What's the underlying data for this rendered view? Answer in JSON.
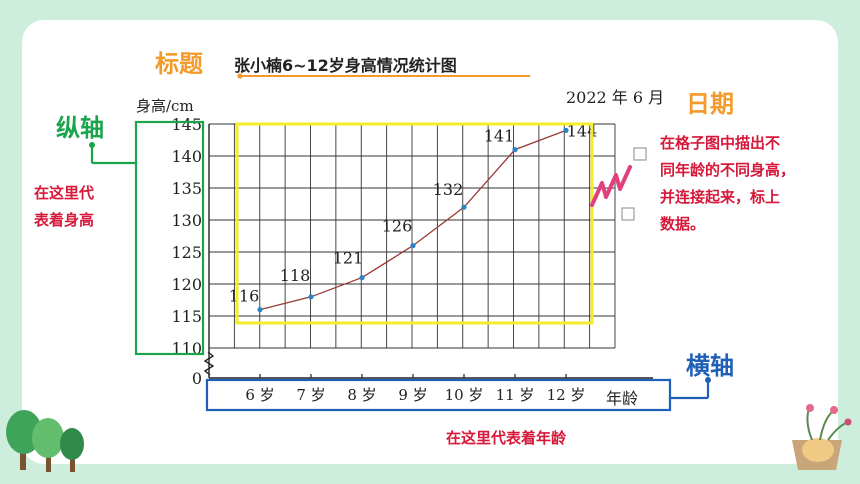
{
  "annotations": {
    "title_tag": "标题",
    "date_tag": "日期",
    "y_axis_tag": "纵轴",
    "x_axis_tag": "横轴",
    "y_axis_note": [
      "在这里代",
      "表着身高"
    ],
    "x_axis_note": "在这里代表着年龄",
    "plot_note": [
      "在格子图中描出不",
      "同年龄的不同身高，",
      "并连接起来，标上",
      "数据。"
    ]
  },
  "colors": {
    "background": "#cdeedd",
    "title_tag": "#f39a2b",
    "axis_tags": "#1aa54c",
    "x_axis_box": "#1f5fb8",
    "plot_box": "#f2ee2a",
    "note_text": "#d6183a",
    "line": "#9a3a36",
    "points": "#2a84c6"
  },
  "chart_data": {
    "type": "line",
    "title": "张小楠6~12岁身高情况统计图",
    "date": "2022 年 6 月",
    "ylabel": "身高/cm",
    "xlabel": "年龄",
    "categories": [
      "6 岁",
      "7 岁",
      "8 岁",
      "9 岁",
      "10 岁",
      "11 岁",
      "12 岁"
    ],
    "values": [
      116,
      118,
      121,
      126,
      132,
      141,
      144
    ],
    "value_labels": [
      "116",
      "118",
      "121",
      "126",
      "132",
      "141",
      "144"
    ],
    "yticks": [
      145,
      140,
      135,
      130,
      125,
      120,
      115,
      110,
      0
    ],
    "ylim": [
      110,
      145
    ],
    "axis_break": true,
    "grid": true
  }
}
